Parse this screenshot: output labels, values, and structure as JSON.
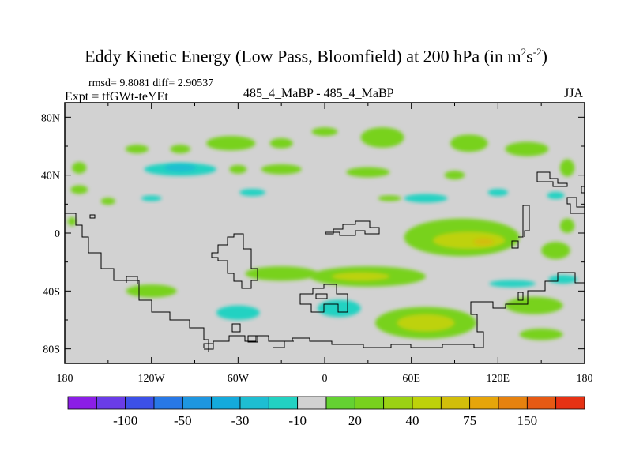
{
  "chart_data": {
    "type": "heatmap",
    "title_main": "Eddy Kinetic Energy (Low Pass, Bloomfield) at 200 hPa (in m",
    "title_sup1": "2",
    "title_mid": "s",
    "title_sup2": "-2",
    "title_end": ")",
    "stats": "rmsd= 9.8081 diff= 2.90537",
    "expt": "Expt = tfGWt-teYEt",
    "center_label": "485_4_MaBP - 485_4_MaBP",
    "season": "JJA",
    "x_axis": {
      "range": [
        -180,
        180
      ],
      "ticks": [
        -180,
        -120,
        -60,
        0,
        60,
        120,
        180
      ],
      "tick_labels": [
        "180",
        "120W",
        "60W",
        "0",
        "60E",
        "120E",
        "180"
      ]
    },
    "y_axis": {
      "range": [
        -90,
        90
      ],
      "ticks": [
        80,
        40,
        0,
        -40,
        -80
      ],
      "tick_labels": [
        "80N",
        "40N",
        "0",
        "40S",
        "80S"
      ]
    },
    "colorbar": {
      "colors": [
        "#8b1ee6",
        "#6a3ce8",
        "#3c50e8",
        "#2878e6",
        "#1e96e0",
        "#14aadc",
        "#1ebed2",
        "#22d2c2",
        "#d2d2d2",
        "#64d232",
        "#78d21e",
        "#9bd214",
        "#bed20a",
        "#d2be0a",
        "#e6a50a",
        "#e6820f",
        "#e65a14",
        "#e63214"
      ],
      "labels": [
        {
          "text": "-100",
          "boundary": 2
        },
        {
          "text": "-50",
          "boundary": 4
        },
        {
          "text": "-30",
          "boundary": 6
        },
        {
          "text": "-10",
          "boundary": 8
        },
        {
          "text": "20",
          "boundary": 10
        },
        {
          "text": "40",
          "boundary": 12
        },
        {
          "text": "75",
          "boundary": 14
        },
        {
          "text": "150",
          "boundary": 16
        }
      ]
    },
    "regions": [
      {
        "level": 20,
        "lon": -170,
        "lat": 45,
        "w": 10,
        "h": 8
      },
      {
        "level": 20,
        "lon": -170,
        "lat": 30,
        "w": 12,
        "h": 6
      },
      {
        "level": 20,
        "lon": -130,
        "lat": 58,
        "w": 16,
        "h": 6
      },
      {
        "level": 20,
        "lon": -100,
        "lat": 58,
        "w": 14,
        "h": 6
      },
      {
        "level": 20,
        "lon": -65,
        "lat": 62,
        "w": 34,
        "h": 10
      },
      {
        "level": 20,
        "lon": -30,
        "lat": 62,
        "w": 16,
        "h": 7
      },
      {
        "level": 20,
        "lon": 0,
        "lat": 70,
        "w": 18,
        "h": 6
      },
      {
        "level": 20,
        "lon": 40,
        "lat": 66,
        "w": 30,
        "h": 14
      },
      {
        "level": 20,
        "lon": 100,
        "lat": 62,
        "w": 26,
        "h": 12
      },
      {
        "level": 20,
        "lon": 140,
        "lat": 58,
        "w": 30,
        "h": 10
      },
      {
        "level": 20,
        "lon": 168,
        "lat": 45,
        "w": 10,
        "h": 12
      },
      {
        "level": -10,
        "lon": -100,
        "lat": 44,
        "w": 50,
        "h": 9
      },
      {
        "level": -30,
        "lon": -100,
        "lat": 45,
        "w": 22,
        "h": 5
      },
      {
        "level": 20,
        "lon": -30,
        "lat": 44,
        "w": 28,
        "h": 7
      },
      {
        "level": 20,
        "lon": -60,
        "lat": 44,
        "w": 12,
        "h": 6
      },
      {
        "level": 20,
        "lon": 30,
        "lat": 42,
        "w": 30,
        "h": 7
      },
      {
        "level": 20,
        "lon": 90,
        "lat": 40,
        "w": 14,
        "h": 6
      },
      {
        "level": -10,
        "lon": -50,
        "lat": 28,
        "w": 18,
        "h": 5
      },
      {
        "level": -10,
        "lon": -120,
        "lat": 24,
        "w": 14,
        "h": 4
      },
      {
        "level": 20,
        "lon": -150,
        "lat": 22,
        "w": 10,
        "h": 5
      },
      {
        "level": -10,
        "lon": 70,
        "lat": 24,
        "w": 30,
        "h": 6
      },
      {
        "level": -10,
        "lon": 120,
        "lat": 28,
        "w": 14,
        "h": 5
      },
      {
        "level": -10,
        "lon": 160,
        "lat": 26,
        "w": 12,
        "h": 5
      },
      {
        "level": 20,
        "lon": 45,
        "lat": 24,
        "w": 16,
        "h": 4
      },
      {
        "level": 20,
        "lon": 95,
        "lat": -3,
        "w": 80,
        "h": 26
      },
      {
        "level": 40,
        "lon": 100,
        "lat": -5,
        "w": 50,
        "h": 12
      },
      {
        "level": 50,
        "lon": 110,
        "lat": -6,
        "w": 14,
        "h": 5
      },
      {
        "level": 20,
        "lon": 160,
        "lat": -12,
        "w": 20,
        "h": 12
      },
      {
        "level": 20,
        "lon": 168,
        "lat": 5,
        "w": 10,
        "h": 10
      },
      {
        "level": 20,
        "lon": -30,
        "lat": -28,
        "w": 50,
        "h": 10
      },
      {
        "level": 20,
        "lon": 30,
        "lat": -30,
        "w": 80,
        "h": 14
      },
      {
        "level": 40,
        "lon": 25,
        "lat": -30,
        "w": 40,
        "h": 6
      },
      {
        "level": 20,
        "lon": -120,
        "lat": -40,
        "w": 35,
        "h": 9
      },
      {
        "level": -10,
        "lon": 10,
        "lat": -52,
        "w": 30,
        "h": 12
      },
      {
        "level": -10,
        "lon": -60,
        "lat": -55,
        "w": 30,
        "h": 10
      },
      {
        "level": -10,
        "lon": 130,
        "lat": -35,
        "w": 32,
        "h": 5
      },
      {
        "level": -10,
        "lon": 165,
        "lat": -32,
        "w": 20,
        "h": 6
      },
      {
        "level": 20,
        "lon": 70,
        "lat": -62,
        "w": 70,
        "h": 22
      },
      {
        "level": 40,
        "lon": 70,
        "lat": -62,
        "w": 40,
        "h": 12
      },
      {
        "level": 20,
        "lon": 145,
        "lat": -50,
        "w": 40,
        "h": 12
      },
      {
        "level": 20,
        "lon": 150,
        "lat": -70,
        "w": 30,
        "h": 8
      },
      {
        "level": 20,
        "lon": -175,
        "lat": 8,
        "w": 6,
        "h": 6
      }
    ]
  }
}
